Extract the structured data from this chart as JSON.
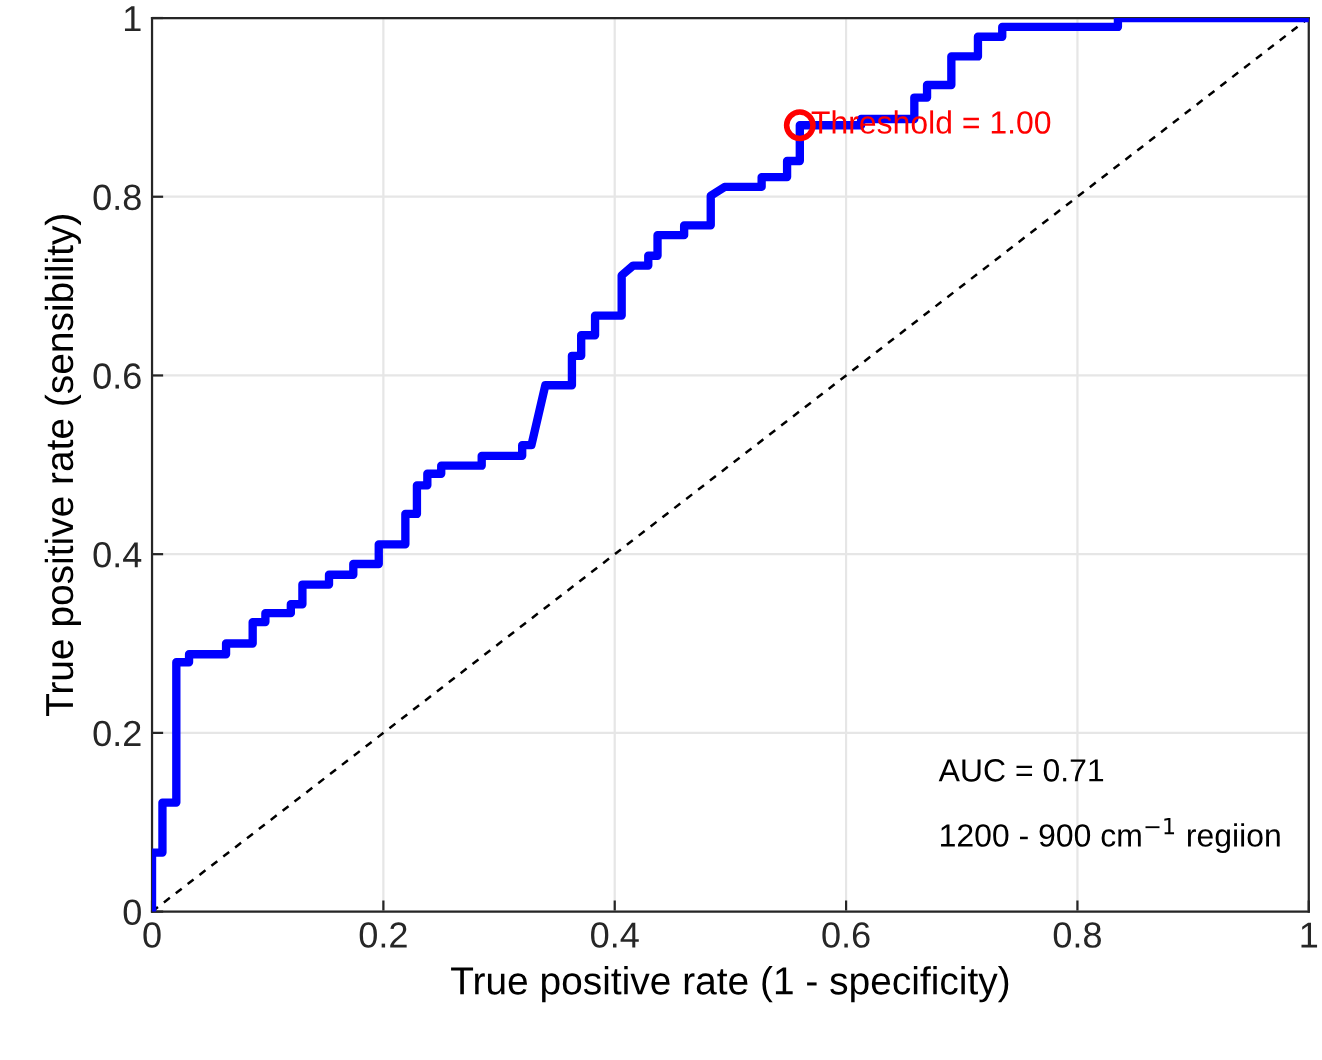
{
  "chart_data": {
    "type": "line",
    "xlabel": "True positive rate (1 - specificity)",
    "ylabel": "True positive rate (sensibility)",
    "series": [
      {
        "color": "#0000ff",
        "x": [
          0,
          0,
          0.009,
          0.009,
          0.021,
          0.021,
          0.032,
          0.032,
          0.064,
          0.064,
          0.087,
          0.087,
          0.098,
          0.098,
          0.12,
          0.12,
          0.13,
          0.13,
          0.153,
          0.153,
          0.174,
          0.174,
          0.196,
          0.196,
          0.219,
          0.219,
          0.229,
          0.229,
          0.238,
          0.238,
          0.25,
          0.25,
          0.285,
          0.285,
          0.32,
          0.32,
          0.328,
          0.34,
          0.363,
          0.363,
          0.371,
          0.371,
          0.383,
          0.383,
          0.406,
          0.406,
          0.416,
          0.429,
          0.429,
          0.437,
          0.437,
          0.46,
          0.46,
          0.483,
          0.483,
          0.495,
          0.527,
          0.527,
          0.549,
          0.549,
          0.56,
          0.56,
          0.613,
          0.613,
          0.659,
          0.659,
          0.67,
          0.67,
          0.691,
          0.691,
          0.714,
          0.714,
          0.735,
          0.735,
          0.835,
          0.835,
          1
        ],
        "values": [
          0,
          0.066,
          0.066,
          0.122,
          0.122,
          0.279,
          0.279,
          0.288,
          0.288,
          0.3,
          0.3,
          0.324,
          0.324,
          0.334,
          0.334,
          0.344,
          0.344,
          0.366,
          0.366,
          0.377,
          0.377,
          0.389,
          0.389,
          0.411,
          0.411,
          0.445,
          0.445,
          0.477,
          0.477,
          0.49,
          0.49,
          0.499,
          0.499,
          0.51,
          0.51,
          0.522,
          0.522,
          0.589,
          0.589,
          0.622,
          0.622,
          0.645,
          0.645,
          0.667,
          0.667,
          0.712,
          0.723,
          0.723,
          0.734,
          0.734,
          0.757,
          0.757,
          0.768,
          0.768,
          0.801,
          0.811,
          0.811,
          0.822,
          0.822,
          0.84,
          0.84,
          0.88,
          0.88,
          0.887,
          0.887,
          0.911,
          0.911,
          0.925,
          0.925,
          0.957,
          0.957,
          0.979,
          0.979,
          0.99,
          0.99,
          1,
          1
        ]
      },
      {
        "color": "#000000",
        "line_style": "dotted",
        "x": [
          0,
          1
        ],
        "values": [
          0,
          1
        ]
      },
      {
        "type": "scatter",
        "color": "#ff0000",
        "marker": "circle",
        "x": [
          0.56
        ],
        "values": [
          0.88
        ]
      }
    ],
    "annotations": [
      {
        "text": "Threshold = 1.00",
        "x": 0.56,
        "y": 0.88
      },
      "AUC = 0.71",
      "1200 - 900 cm$^{−1}$ regiion"
    ],
    "xlim": [
      0,
      1
    ],
    "ylim": [
      0,
      1
    ],
    "xticks": [
      0,
      0.2,
      0.4,
      0.6,
      0.8,
      1
    ],
    "yticks": [
      0,
      0.2,
      0.4,
      0.6,
      0.8,
      1
    ],
    "grid": true
  }
}
